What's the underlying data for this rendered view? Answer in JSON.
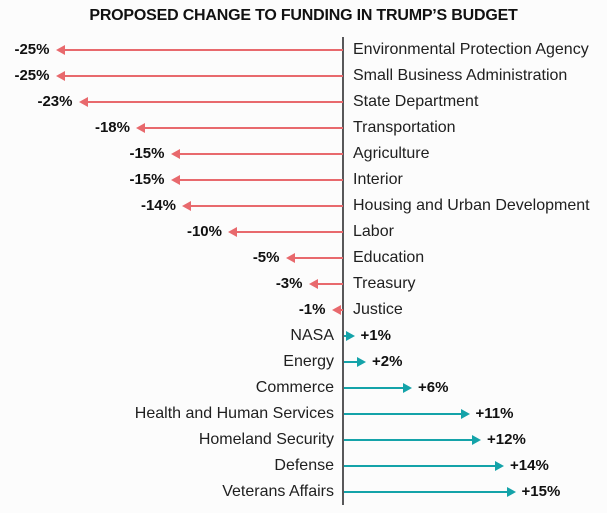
{
  "header": {
    "title": "PROPOSED CHANGE TO FUNDING IN TRUMP’S BUDGET"
  },
  "chart_data": {
    "type": "bar",
    "subtype": "diverging-arrow-lollipop",
    "title": "PROPOSED CHANGE TO FUNDING IN TRUMP’S BUDGET",
    "xlabel": "",
    "ylabel": "",
    "xlim": [
      -25,
      15
    ],
    "grid": false,
    "legend": false,
    "units": "percent",
    "categories": [
      "Environmental Protection Agency",
      "Small Business Administration",
      "State Department",
      "Transportation",
      "Agriculture",
      "Interior",
      "Housing and Urban Development",
      "Labor",
      "Education",
      "Treasury",
      "Justice",
      "NASA",
      "Energy",
      "Commerce",
      "Health and Human Services",
      "Homeland Security",
      "Defense",
      "Veterans Affairs"
    ],
    "values": [
      -25,
      -25,
      -23,
      -18,
      -15,
      -15,
      -14,
      -10,
      -5,
      -3,
      -1,
      1,
      2,
      6,
      11,
      12,
      14,
      15
    ],
    "value_labels": [
      "-25%",
      "-25%",
      "-23%",
      "-18%",
      "-15%",
      "-15%",
      "-14%",
      "-10%",
      "-5%",
      "-3%",
      "-1%",
      "+1%",
      "+2%",
      "+6%",
      "+11%",
      "+12%",
      "+14%",
      "+15%"
    ],
    "colors": {
      "negative": "#e8696d",
      "positive": "#14a3a9",
      "axis": "#58585a",
      "text": "#202020",
      "value_text": "#111111",
      "background": "#fcfcfc"
    }
  }
}
